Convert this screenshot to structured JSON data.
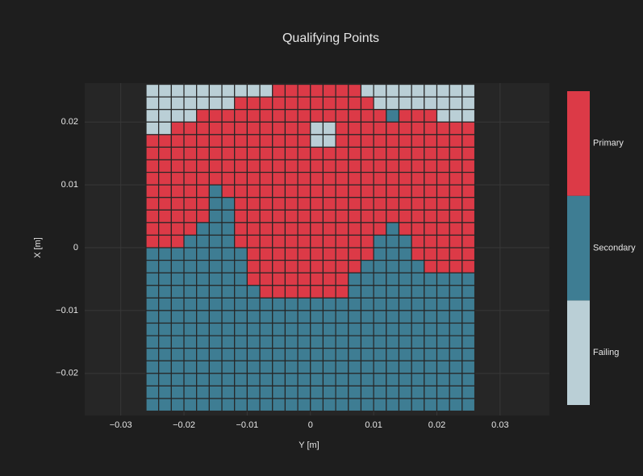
{
  "chart_data": {
    "type": "heatmap",
    "title": "Qualifying Points",
    "x_label": "Y [m]",
    "y_label": "X [m]",
    "x": [
      -0.025,
      -0.023,
      -0.021,
      -0.019,
      -0.017,
      -0.015,
      -0.013,
      -0.011,
      -0.009,
      -0.007,
      -0.005,
      -0.003,
      -0.001,
      0.001,
      0.003,
      0.005,
      0.007,
      0.009,
      0.011,
      0.013,
      0.015,
      0.017,
      0.019,
      0.021,
      0.023,
      0.025
    ],
    "y": [
      0.025,
      0.023,
      0.021,
      0.019,
      0.017,
      0.015,
      0.013,
      0.011,
      0.009,
      0.007,
      0.005,
      0.003,
      0.001,
      -0.001,
      -0.003,
      -0.005,
      -0.007,
      -0.009,
      -0.011,
      -0.013,
      -0.015,
      -0.017,
      -0.019,
      -0.021,
      -0.023,
      -0.025
    ],
    "z": [
      [
        0,
        0,
        0,
        0,
        0,
        0,
        0,
        0,
        0,
        0,
        2,
        2,
        2,
        2,
        2,
        2,
        2,
        0,
        0,
        0,
        0,
        0,
        0,
        0,
        0,
        0
      ],
      [
        0,
        0,
        0,
        0,
        0,
        0,
        0,
        2,
        2,
        2,
        2,
        2,
        2,
        2,
        2,
        2,
        2,
        2,
        0,
        0,
        0,
        0,
        0,
        0,
        0,
        0
      ],
      [
        0,
        0,
        0,
        0,
        2,
        2,
        2,
        2,
        2,
        2,
        2,
        2,
        2,
        2,
        2,
        2,
        2,
        2,
        2,
        1,
        2,
        2,
        2,
        0,
        0,
        0
      ],
      [
        0,
        0,
        2,
        2,
        2,
        2,
        2,
        2,
        2,
        2,
        2,
        2,
        2,
        0,
        0,
        2,
        2,
        2,
        2,
        2,
        2,
        2,
        2,
        2,
        2,
        2
      ],
      [
        2,
        2,
        2,
        2,
        2,
        2,
        2,
        2,
        2,
        2,
        2,
        2,
        2,
        0,
        0,
        2,
        2,
        2,
        2,
        2,
        2,
        2,
        2,
        2,
        2,
        2
      ],
      [
        2,
        2,
        2,
        2,
        2,
        2,
        2,
        2,
        2,
        2,
        2,
        2,
        2,
        2,
        2,
        2,
        2,
        2,
        2,
        2,
        2,
        2,
        2,
        2,
        2,
        2
      ],
      [
        2,
        2,
        2,
        2,
        2,
        2,
        2,
        2,
        2,
        2,
        2,
        2,
        2,
        2,
        2,
        2,
        2,
        2,
        2,
        2,
        2,
        2,
        2,
        2,
        2,
        2
      ],
      [
        2,
        2,
        2,
        2,
        2,
        2,
        2,
        2,
        2,
        2,
        2,
        2,
        2,
        2,
        2,
        2,
        2,
        2,
        2,
        2,
        2,
        2,
        2,
        2,
        2,
        2
      ],
      [
        2,
        2,
        2,
        2,
        2,
        1,
        2,
        2,
        2,
        2,
        2,
        2,
        2,
        2,
        2,
        2,
        2,
        2,
        2,
        2,
        2,
        2,
        2,
        2,
        2,
        2
      ],
      [
        2,
        2,
        2,
        2,
        2,
        1,
        1,
        2,
        2,
        2,
        2,
        2,
        2,
        2,
        2,
        2,
        2,
        2,
        2,
        2,
        2,
        2,
        2,
        2,
        2,
        2
      ],
      [
        2,
        2,
        2,
        2,
        2,
        1,
        1,
        2,
        2,
        2,
        2,
        2,
        2,
        2,
        2,
        2,
        2,
        2,
        2,
        2,
        2,
        2,
        2,
        2,
        2,
        2
      ],
      [
        2,
        2,
        2,
        2,
        1,
        1,
        1,
        2,
        2,
        2,
        2,
        2,
        2,
        2,
        2,
        2,
        2,
        2,
        2,
        1,
        2,
        2,
        2,
        2,
        2,
        2
      ],
      [
        2,
        2,
        2,
        1,
        1,
        1,
        1,
        2,
        2,
        2,
        2,
        2,
        2,
        2,
        2,
        2,
        2,
        2,
        1,
        1,
        1,
        2,
        2,
        2,
        2,
        2
      ],
      [
        1,
        1,
        1,
        1,
        1,
        1,
        1,
        1,
        2,
        2,
        2,
        2,
        2,
        2,
        2,
        2,
        2,
        2,
        1,
        1,
        1,
        2,
        2,
        2,
        2,
        2
      ],
      [
        1,
        1,
        1,
        1,
        1,
        1,
        1,
        1,
        2,
        2,
        2,
        2,
        2,
        2,
        2,
        2,
        2,
        1,
        1,
        1,
        1,
        1,
        2,
        2,
        2,
        2
      ],
      [
        1,
        1,
        1,
        1,
        1,
        1,
        1,
        1,
        2,
        2,
        2,
        2,
        2,
        2,
        2,
        2,
        1,
        1,
        1,
        1,
        1,
        1,
        1,
        1,
        1,
        1
      ],
      [
        1,
        1,
        1,
        1,
        1,
        1,
        1,
        1,
        1,
        2,
        2,
        2,
        2,
        2,
        2,
        2,
        1,
        1,
        1,
        1,
        1,
        1,
        1,
        1,
        1,
        1
      ],
      [
        1,
        1,
        1,
        1,
        1,
        1,
        1,
        1,
        1,
        1,
        1,
        1,
        1,
        1,
        1,
        1,
        1,
        1,
        1,
        1,
        1,
        1,
        1,
        1,
        1,
        1
      ],
      [
        1,
        1,
        1,
        1,
        1,
        1,
        1,
        1,
        1,
        1,
        1,
        1,
        1,
        1,
        1,
        1,
        1,
        1,
        1,
        1,
        1,
        1,
        1,
        1,
        1,
        1
      ],
      [
        1,
        1,
        1,
        1,
        1,
        1,
        1,
        1,
        1,
        1,
        1,
        1,
        1,
        1,
        1,
        1,
        1,
        1,
        1,
        1,
        1,
        1,
        1,
        1,
        1,
        1
      ],
      [
        1,
        1,
        1,
        1,
        1,
        1,
        1,
        1,
        1,
        1,
        1,
        1,
        1,
        1,
        1,
        1,
        1,
        1,
        1,
        1,
        1,
        1,
        1,
        1,
        1,
        1
      ],
      [
        1,
        1,
        1,
        1,
        1,
        1,
        1,
        1,
        1,
        1,
        1,
        1,
        1,
        1,
        1,
        1,
        1,
        1,
        1,
        1,
        1,
        1,
        1,
        1,
        1,
        1
      ],
      [
        1,
        1,
        1,
        1,
        1,
        1,
        1,
        1,
        1,
        1,
        1,
        1,
        1,
        1,
        1,
        1,
        1,
        1,
        1,
        1,
        1,
        1,
        1,
        1,
        1,
        1
      ],
      [
        1,
        1,
        1,
        1,
        1,
        1,
        1,
        1,
        1,
        1,
        1,
        1,
        1,
        1,
        1,
        1,
        1,
        1,
        1,
        1,
        1,
        1,
        1,
        1,
        1,
        1
      ],
      [
        1,
        1,
        1,
        1,
        1,
        1,
        1,
        1,
        1,
        1,
        1,
        1,
        1,
        1,
        1,
        1,
        1,
        1,
        1,
        1,
        1,
        1,
        1,
        1,
        1,
        1
      ],
      [
        1,
        1,
        1,
        1,
        1,
        1,
        1,
        1,
        1,
        1,
        1,
        1,
        1,
        1,
        1,
        1,
        1,
        1,
        1,
        1,
        1,
        1,
        1,
        1,
        1,
        1
      ]
    ],
    "xlim": [
      -0.0357,
      0.0378
    ],
    "ylim": [
      -0.0267,
      0.0262
    ],
    "xticks": [
      {
        "value": -0.03,
        "label": "−0.03"
      },
      {
        "value": -0.02,
        "label": "−0.02"
      },
      {
        "value": -0.01,
        "label": "−0.01"
      },
      0,
      0.01,
      0.02,
      0.03
    ],
    "yticks": [
      {
        "value": -0.02,
        "label": "−0.02"
      },
      {
        "value": -0.01,
        "label": "−0.01"
      },
      0,
      0.01,
      0.02
    ],
    "grid": true,
    "colorbar": {
      "lim": [
        -0.5,
        2.5
      ],
      "ticks": [
        {
          "value": 0,
          "label": "Failing"
        },
        {
          "value": 1,
          "label": "Secondary"
        },
        {
          "value": 2,
          "label": "Primary"
        }
      ],
      "colors": [
        "#bacfd6",
        "#3e7d93",
        "#dc3a47"
      ]
    }
  }
}
